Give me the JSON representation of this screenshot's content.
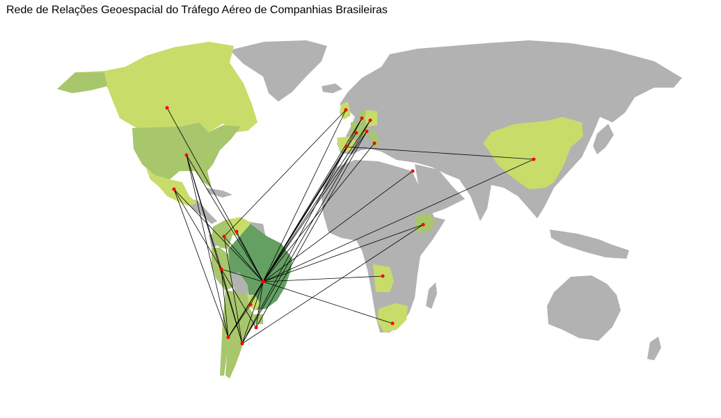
{
  "title": "Rede de Relações Geoespacial do Tráfego Aéreo de Companhias Brasileiras",
  "colors": {
    "background": "#ffffff",
    "land_default": "#b2b2b2",
    "country_low": "#c8dc6a",
    "country_mid": "#a8c66c",
    "country_high": "#6aa36a",
    "hub_brazil": "#63a062",
    "route_line": "#000000",
    "airport_point": "#ff0000"
  },
  "hub": "Brasil",
  "routes": [
    "Canadá",
    "Estados Unidos",
    "México",
    "Venezuela",
    "Colômbia",
    "Peru",
    "Bolívia",
    "Paraguai",
    "Uruguai",
    "Chile",
    "Argentina",
    "Reino Unido",
    "França",
    "Alemanha",
    "Holanda",
    "Portugal",
    "Espanha",
    "Itália",
    "Egito",
    "Etiópia",
    "Angola",
    "África do Sul",
    "China"
  ]
}
